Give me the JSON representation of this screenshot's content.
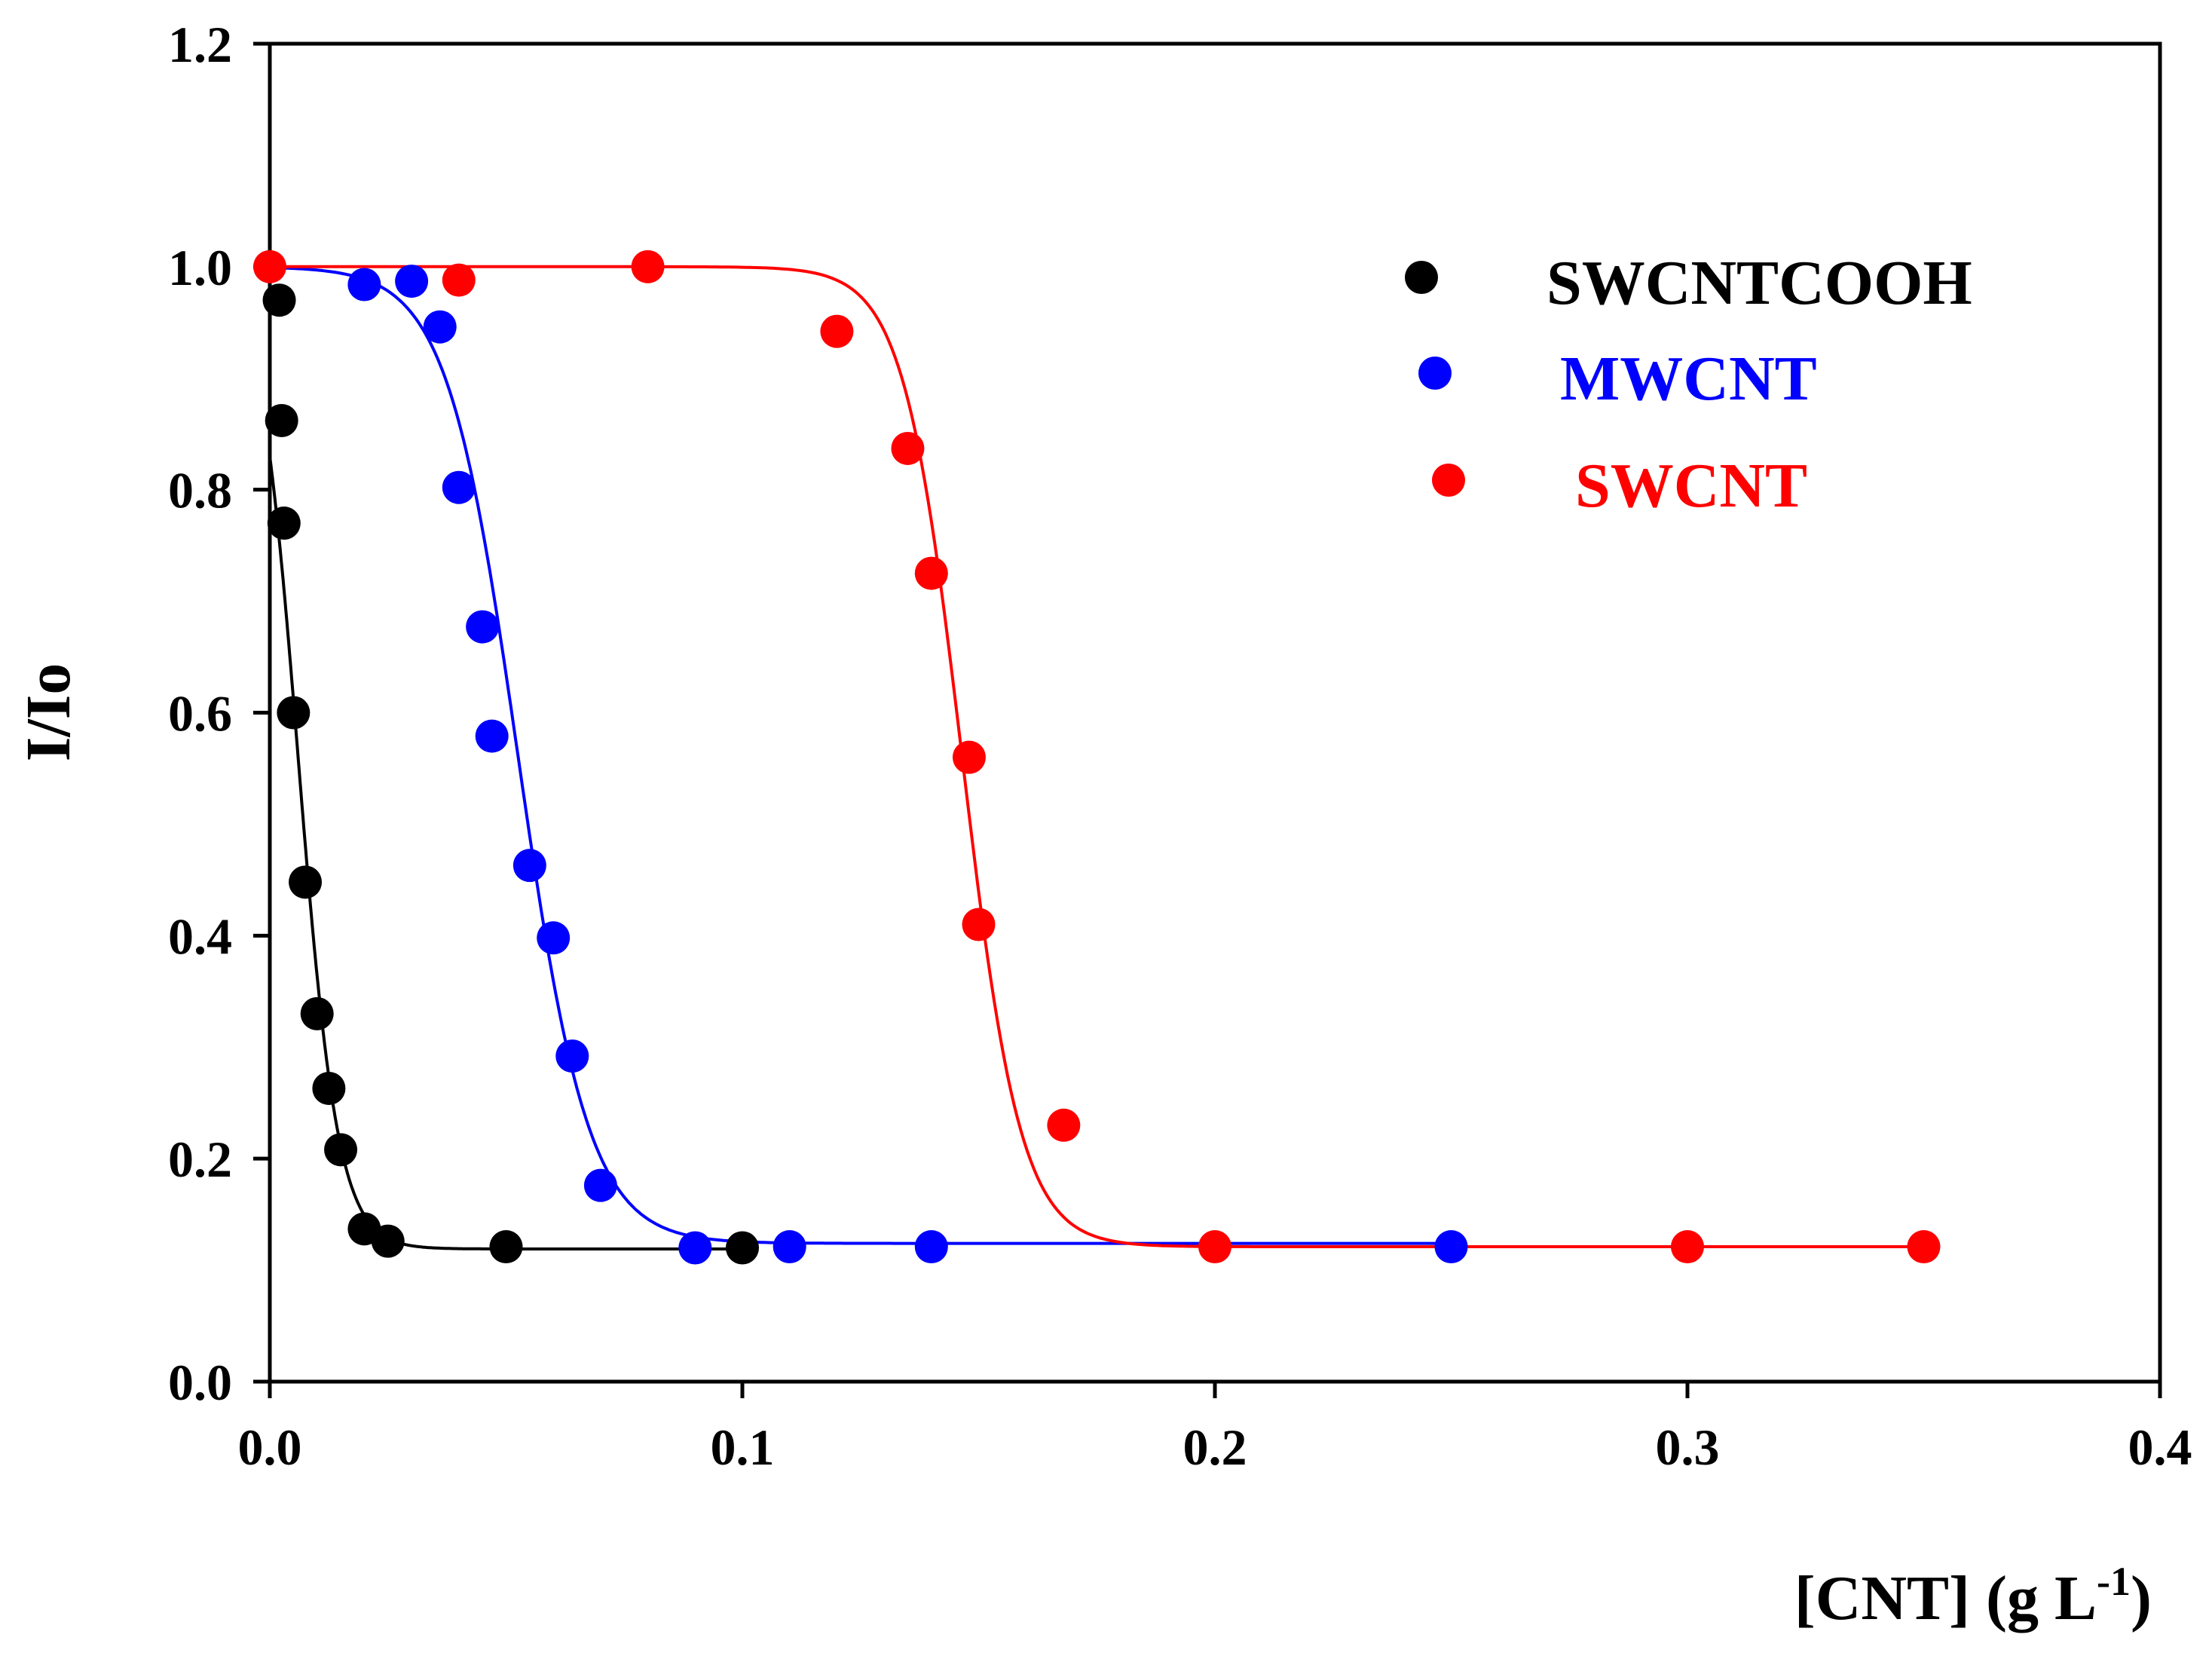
{
  "chart_data": {
    "type": "scatter",
    "title": "",
    "xlabel": "[CNT] (g L",
    "xlabel_sup": "-1",
    "xlabel_end": ")",
    "ylabel": "I/Io",
    "xlim": [
      0,
      0.4
    ],
    "ylim": [
      0,
      1.2
    ],
    "x_ticks": [
      0,
      0.1,
      0.2,
      0.3,
      0.4
    ],
    "x_tick_labels": [
      "0.0",
      "0.1",
      "0.2",
      "0.3",
      "0.4"
    ],
    "y_ticks": [
      0,
      0.2,
      0.4,
      0.6,
      0.8,
      1.0,
      1.2
    ],
    "y_tick_labels": [
      "0.0",
      "0.2",
      "0.4",
      "0.6",
      "0.8",
      "1.0",
      "1.2"
    ],
    "grid": false,
    "legend_position": "top-right",
    "series": [
      {
        "name": "SWCNTCOOH",
        "color": "#000000",
        "points": [
          [
            0.002,
            0.97
          ],
          [
            0.0025,
            0.862
          ],
          [
            0.003,
            0.77
          ],
          [
            0.005,
            0.6
          ],
          [
            0.0075,
            0.448
          ],
          [
            0.01,
            0.33
          ],
          [
            0.0125,
            0.263
          ],
          [
            0.015,
            0.208
          ],
          [
            0.02,
            0.137
          ],
          [
            0.025,
            0.126
          ],
          [
            0.05,
            0.121
          ],
          [
            0.1,
            0.12
          ]
        ],
        "fit": {
          "model": "sigmoid",
          "bottom": 0.119,
          "top": 1.0,
          "x50": 0.006,
          "width": 0.0042,
          "x_start": 0.0,
          "x_end": 0.1
        }
      },
      {
        "name": "MWCNT",
        "color": "#0000ff",
        "points": [
          [
            0.02,
            0.984
          ],
          [
            0.03,
            0.987
          ],
          [
            0.036,
            0.946
          ],
          [
            0.04,
            0.802
          ],
          [
            0.045,
            0.677
          ],
          [
            0.047,
            0.579
          ],
          [
            0.055,
            0.463
          ],
          [
            0.06,
            0.398
          ],
          [
            0.064,
            0.292
          ],
          [
            0.07,
            0.176
          ],
          [
            0.09,
            0.12
          ],
          [
            0.11,
            0.121
          ],
          [
            0.14,
            0.121
          ],
          [
            0.25,
            0.121
          ]
        ],
        "fit": {
          "model": "sigmoid",
          "bottom": 0.124,
          "top": 1.0,
          "x50": 0.0525,
          "width": 0.0075,
          "x_start": 0.0,
          "x_end": 0.25
        }
      },
      {
        "name": "SWCNT",
        "color": "#ff0000",
        "points": [
          [
            0.0,
            1.0
          ],
          [
            0.04,
            0.988
          ],
          [
            0.08,
            1.0
          ],
          [
            0.12,
            0.942
          ],
          [
            0.135,
            0.837
          ],
          [
            0.14,
            0.725
          ],
          [
            0.148,
            0.56
          ],
          [
            0.15,
            0.41
          ],
          [
            0.168,
            0.23
          ],
          [
            0.2,
            0.121
          ],
          [
            0.3,
            0.121
          ],
          [
            0.35,
            0.121
          ]
        ],
        "fit": {
          "model": "sigmoid",
          "bottom": 0.121,
          "top": 1.0,
          "x50": 0.1465,
          "width": 0.0062,
          "x_start": 0.0,
          "x_end": 0.35
        }
      }
    ]
  }
}
